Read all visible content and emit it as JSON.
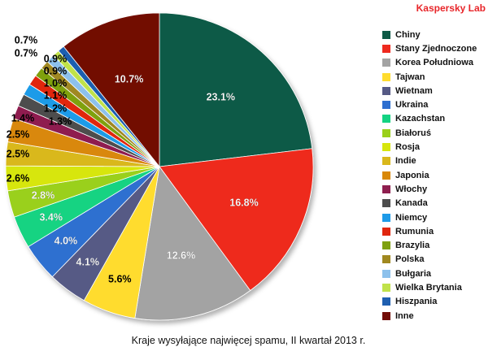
{
  "brand": "Kaspersky Lab",
  "chart_data": {
    "type": "pie",
    "title": "Kraje wysyłające najwięcej spamu, II kwartał 2013 r.",
    "legend_position": "right",
    "unit": "%",
    "categories": [
      "Chiny",
      "Stany Zjednoczone",
      "Korea Południowa",
      "Tajwan",
      "Wietnam",
      "Ukraina",
      "Kazachstan",
      "Białoruś",
      "Rosja",
      "Indie",
      "Japonia",
      "Włochy",
      "Kanada",
      "Niemcy",
      "Rumunia",
      "Brazylia",
      "Polska",
      "Bułgaria",
      "Wielka Brytania",
      "Hiszpania",
      "Inne"
    ],
    "values": [
      23.1,
      16.8,
      12.6,
      5.6,
      4.1,
      4.0,
      3.4,
      2.8,
      2.6,
      2.5,
      2.5,
      1.4,
      1.3,
      1.2,
      1.1,
      1.0,
      0.9,
      0.9,
      0.7,
      0.7,
      10.7
    ],
    "labels": [
      "23.1%",
      "16.8%",
      "12.6%",
      "5.6%",
      "4.1%",
      "4.0%",
      "3.4%",
      "2.8%",
      "2.6%",
      "2.5%",
      "2.5%",
      "1.4%",
      "1.3%",
      "1.2%",
      "1.1%",
      "1.0%",
      "0.9%",
      "0.9%",
      "0.7%",
      "0.7%",
      "10.7%"
    ],
    "colors": [
      "#0e5a46",
      "#ee2a1f",
      "#a3a3a3",
      "#ffdc2e",
      "#565a85",
      "#2d6fd0",
      "#13d382",
      "#9ad01a",
      "#d7e60d",
      "#d9b81c",
      "#d98808",
      "#8f1f4f",
      "#4d4d4d",
      "#1e9be8",
      "#e0260e",
      "#7fa10f",
      "#a08820",
      "#8dc1ec",
      "#c0e24a",
      "#1f5fb0",
      "#720d06"
    ]
  }
}
